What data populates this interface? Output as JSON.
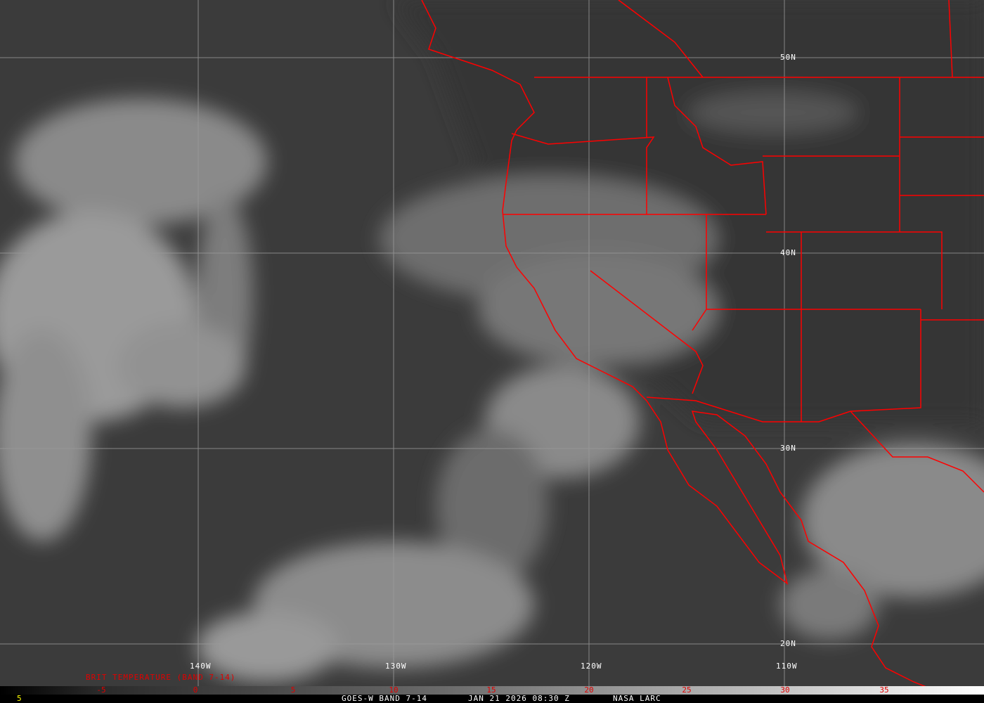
{
  "map": {
    "lat_labels": [
      "50N",
      "40N",
      "30N",
      "20N"
    ],
    "lon_labels": [
      "140W",
      "130W",
      "120W",
      "110W"
    ],
    "border_color": "#ff0000",
    "grid_color": "#9a9a9a"
  },
  "legend": {
    "title": "BRIT TEMPERATURE (BAND 7-14)",
    "ticks": [
      "-5",
      "0",
      "5",
      "10",
      "15",
      "20",
      "25",
      "30",
      "35"
    ],
    "tick_color": "#ff0000"
  },
  "footer": {
    "left_value": "5",
    "satellite": "GOES-W BAND 7-14",
    "datetime": "JAN 21 2026 08:30 Z",
    "source": "NASA LARC"
  }
}
